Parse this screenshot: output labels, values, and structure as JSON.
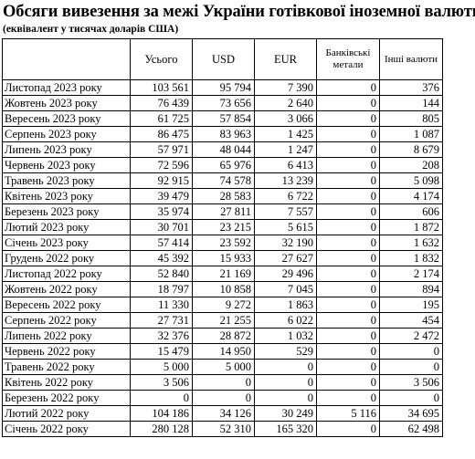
{
  "title": "Обсяги вивезення за межі України готівкової іноземної валюти",
  "subtitle": "(еквівалент у тисячах доларів США)",
  "columns": [
    "",
    "Усього",
    "USD",
    "EUR",
    "Банківські метали",
    "Інші валюти"
  ],
  "rows": [
    {
      "period": "Листопад 2023 року",
      "total": "103 561",
      "usd": "95 794",
      "eur": "7 390",
      "metals": "0",
      "other": "376"
    },
    {
      "period": "Жовтень 2023 року",
      "total": "76 439",
      "usd": "73 656",
      "eur": "2 640",
      "metals": "0",
      "other": "144"
    },
    {
      "period": "Вересень 2023 року",
      "total": "61 725",
      "usd": "57 854",
      "eur": "3 066",
      "metals": "0",
      "other": "805"
    },
    {
      "period": "Серпень 2023 року",
      "total": "86 475",
      "usd": "83 963",
      "eur": "1 425",
      "metals": "0",
      "other": "1 087"
    },
    {
      "period": "Липень 2023 року",
      "total": "57 971",
      "usd": "48 044",
      "eur": "1 247",
      "metals": "0",
      "other": "8 679"
    },
    {
      "period": "Червень 2023 року",
      "total": "72 596",
      "usd": "65 976",
      "eur": "6 413",
      "metals": "0",
      "other": "208"
    },
    {
      "period": "Травень 2023 року",
      "total": "92 915",
      "usd": "74 578",
      "eur": "13 239",
      "metals": "0",
      "other": "5 098"
    },
    {
      "period": "Квітень 2023 року",
      "total": "39 479",
      "usd": "28 583",
      "eur": "6 722",
      "metals": "0",
      "other": "4 174"
    },
    {
      "period": "Березень 2023 року",
      "total": "35 974",
      "usd": "27 811",
      "eur": "7 557",
      "metals": "0",
      "other": "606"
    },
    {
      "period": "Лютий 2023 року",
      "total": "30 701",
      "usd": "23 215",
      "eur": "5 615",
      "metals": "0",
      "other": "1 872"
    },
    {
      "period": "Січень 2023 року",
      "total": "57 414",
      "usd": "23 592",
      "eur": "32 190",
      "metals": "0",
      "other": "1 632"
    },
    {
      "period": "Грудень 2022 року",
      "total": "45 392",
      "usd": "15 933",
      "eur": "27 627",
      "metals": "0",
      "other": "1 832"
    },
    {
      "period": "Листопад 2022 року",
      "total": "52 840",
      "usd": "21 169",
      "eur": "29 496",
      "metals": "0",
      "other": "2 174"
    },
    {
      "period": "Жовтень 2022 року",
      "total": "18 797",
      "usd": "10 858",
      "eur": "7 045",
      "metals": "0",
      "other": "894"
    },
    {
      "period": "Вересень 2022 року",
      "total": "11 330",
      "usd": "9 272",
      "eur": "1 863",
      "metals": "0",
      "other": "195"
    },
    {
      "period": "Серпень 2022 року",
      "total": "27 731",
      "usd": "21 255",
      "eur": "6 022",
      "metals": "0",
      "other": "454"
    },
    {
      "period": "Липень 2022 року",
      "total": "32 376",
      "usd": "28 872",
      "eur": "1 032",
      "metals": "0",
      "other": "2 472"
    },
    {
      "period": "Червень 2022 року",
      "total": "15 479",
      "usd": "14 950",
      "eur": "529",
      "metals": "0",
      "other": "0"
    },
    {
      "period": "Травень 2022 року",
      "total": "5 000",
      "usd": "5 000",
      "eur": "0",
      "metals": "0",
      "other": "0"
    },
    {
      "period": "Квітень 2022 року",
      "total": "3 506",
      "usd": "0",
      "eur": "0",
      "metals": "0",
      "other": "3 506"
    },
    {
      "period": "Березень 2022 року",
      "total": "0",
      "usd": "0",
      "eur": "0",
      "metals": "0",
      "other": "0"
    },
    {
      "period": "Лютий 2022 року",
      "total": "104 186",
      "usd": "34 126",
      "eur": "30 249",
      "metals": "5 116",
      "other": "34 695"
    },
    {
      "period": "Січень 2022 року",
      "total": "280 128",
      "usd": "52 310",
      "eur": "165 320",
      "metals": "0",
      "other": "62 498"
    }
  ]
}
